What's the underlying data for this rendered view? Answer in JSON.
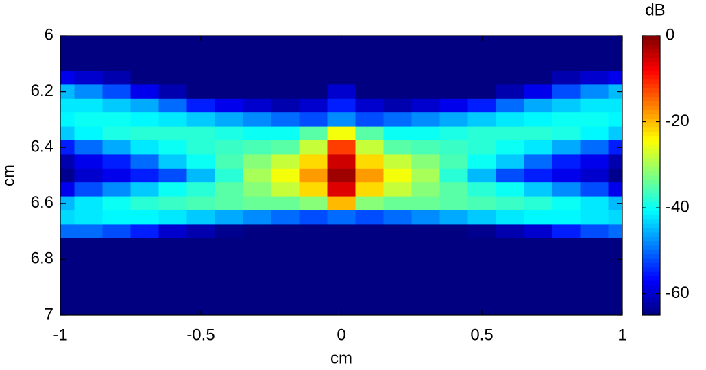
{
  "chart_data": {
    "type": "heatmap",
    "xlabel": "cm",
    "ylabel": "cm",
    "x": [
      -1,
      -0.9,
      -0.8,
      -0.7,
      -0.6,
      -0.5,
      -0.4,
      -0.3,
      -0.2,
      -0.1,
      0,
      0.1,
      0.2,
      0.3,
      0.4,
      0.5,
      0.6,
      0.7,
      0.8,
      0.9,
      1
    ],
    "y": [
      6,
      6.05,
      6.1,
      6.15,
      6.2,
      6.25,
      6.3,
      6.35,
      6.4,
      6.45,
      6.5,
      6.55,
      6.6,
      6.65,
      6.7,
      6.75,
      6.8,
      6.85,
      6.9,
      6.95,
      7
    ],
    "z": [
      [
        -65,
        -65,
        -65,
        -65,
        -65,
        -65,
        -65,
        -65,
        -65,
        -65,
        -65,
        -65,
        -65,
        -65,
        -65,
        -65,
        -65,
        -65,
        -65,
        -65,
        -65
      ],
      [
        -65,
        -65,
        -65,
        -65,
        -65,
        -65,
        -65,
        -65,
        -65,
        -65,
        -65,
        -65,
        -65,
        -65,
        -65,
        -65,
        -65,
        -65,
        -65,
        -65,
        -65
      ],
      [
        -65,
        -65,
        -65,
        -65,
        -65,
        -65,
        -65,
        -65,
        -65,
        -65,
        -65,
        -65,
        -65,
        -65,
        -65,
        -65,
        -65,
        -65,
        -65,
        -65,
        -65
      ],
      [
        -58,
        -60,
        -62,
        -65,
        -65,
        -65,
        -65,
        -65,
        -65,
        -65,
        -65,
        -65,
        -65,
        -65,
        -65,
        -65,
        -65,
        -65,
        -62,
        -60,
        -58
      ],
      [
        -45,
        -48,
        -52,
        -58,
        -62,
        -65,
        -65,
        -65,
        -65,
        -65,
        -60,
        -65,
        -65,
        -65,
        -65,
        -65,
        -62,
        -58,
        -52,
        -48,
        -45
      ],
      [
        -42,
        -42,
        -44,
        -46,
        -50,
        -55,
        -58,
        -60,
        -62,
        -60,
        -55,
        -60,
        -62,
        -60,
        -58,
        -55,
        -50,
        -46,
        -44,
        -42,
        -42
      ],
      [
        -41,
        -40,
        -40,
        -41,
        -42,
        -44,
        -46,
        -48,
        -50,
        -52,
        -48,
        -52,
        -50,
        -48,
        -46,
        -44,
        -42,
        -41,
        -40,
        -40,
        -41
      ],
      [
        -44,
        -41,
        -39,
        -38,
        -38,
        -38,
        -39,
        -40,
        -40,
        -35,
        -25,
        -35,
        -40,
        -40,
        -39,
        -38,
        -38,
        -38,
        -39,
        -41,
        -44
      ],
      [
        -55,
        -50,
        -46,
        -42,
        -40,
        -38,
        -37,
        -36,
        -35,
        -28,
        -12,
        -28,
        -35,
        -36,
        -37,
        -38,
        -40,
        -42,
        -46,
        -50,
        -55
      ],
      [
        -62,
        -58,
        -55,
        -50,
        -44,
        -40,
        -36,
        -32,
        -28,
        -22,
        -5,
        -22,
        -28,
        -32,
        -36,
        -40,
        -44,
        -50,
        -55,
        -58,
        -62
      ],
      [
        -64,
        -60,
        -58,
        -55,
        -52,
        -45,
        -38,
        -30,
        -25,
        -18,
        -2,
        -18,
        -25,
        -30,
        -38,
        -45,
        -52,
        -55,
        -58,
        -60,
        -64
      ],
      [
        -58,
        -52,
        -48,
        -44,
        -40,
        -38,
        -35,
        -32,
        -28,
        -22,
        -6,
        -22,
        -28,
        -32,
        -35,
        -38,
        -40,
        -44,
        -48,
        -52,
        -58
      ],
      [
        -45,
        -42,
        -40,
        -38,
        -37,
        -36,
        -35,
        -34,
        -34,
        -32,
        -20,
        -32,
        -34,
        -34,
        -35,
        -36,
        -37,
        -38,
        -40,
        -42,
        -45
      ],
      [
        -43,
        -42,
        -41,
        -41,
        -42,
        -44,
        -46,
        -48,
        -50,
        -52,
        -50,
        -52,
        -50,
        -48,
        -46,
        -44,
        -42,
        -41,
        -41,
        -42,
        -43
      ],
      [
        -50,
        -50,
        -52,
        -55,
        -60,
        -62,
        -64,
        -65,
        -65,
        -65,
        -65,
        -65,
        -65,
        -65,
        -65,
        -64,
        -62,
        -60,
        -55,
        -52,
        -50
      ],
      [
        -65,
        -65,
        -65,
        -65,
        -65,
        -65,
        -65,
        -65,
        -65,
        -65,
        -65,
        -65,
        -65,
        -65,
        -65,
        -65,
        -65,
        -65,
        -65,
        -65,
        -65
      ],
      [
        -65,
        -65,
        -65,
        -65,
        -65,
        -65,
        -65,
        -65,
        -65,
        -65,
        -65,
        -65,
        -65,
        -65,
        -65,
        -65,
        -65,
        -65,
        -65,
        -65,
        -65
      ],
      [
        -65,
        -65,
        -65,
        -65,
        -65,
        -65,
        -65,
        -65,
        -65,
        -65,
        -65,
        -65,
        -65,
        -65,
        -65,
        -65,
        -65,
        -65,
        -65,
        -65,
        -65
      ],
      [
        -65,
        -65,
        -65,
        -65,
        -65,
        -65,
        -65,
        -65,
        -65,
        -65,
        -65,
        -65,
        -65,
        -65,
        -65,
        -65,
        -65,
        -65,
        -65,
        -65,
        -65
      ],
      [
        -65,
        -65,
        -65,
        -65,
        -65,
        -65,
        -65,
        -65,
        -65,
        -65,
        -65,
        -65,
        -65,
        -65,
        -65,
        -65,
        -65,
        -65,
        -65,
        -65,
        -65
      ],
      [
        -65,
        -65,
        -65,
        -65,
        -65,
        -65,
        -65,
        -65,
        -65,
        -65,
        -65,
        -65,
        -65,
        -65,
        -65,
        -65,
        -65,
        -65,
        -65,
        -65,
        -65
      ]
    ],
    "xlim": [
      -1,
      1
    ],
    "xticks": [
      -1,
      -0.5,
      0,
      0.5,
      1
    ],
    "ylim": [
      6,
      7
    ],
    "yticks": [
      6,
      6.2,
      6.4,
      6.6,
      6.8,
      7
    ],
    "y_reversed": true,
    "colormap": "jet",
    "colorbar": {
      "label": "dB",
      "clim": [
        -65,
        0
      ],
      "ticks": [
        -60,
        -40,
        -20,
        0
      ]
    }
  }
}
